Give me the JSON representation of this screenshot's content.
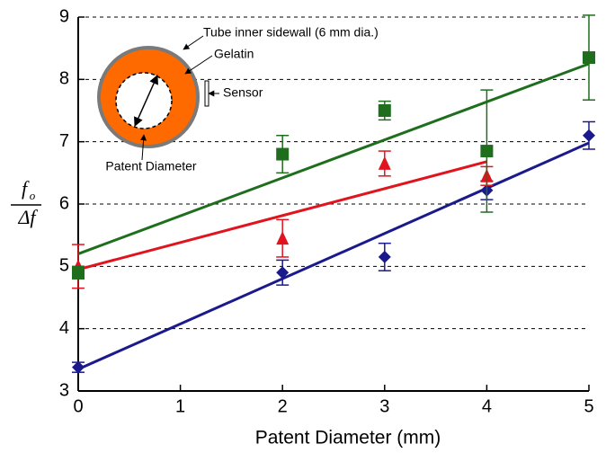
{
  "chart_data": {
    "type": "scatter",
    "x_label": "Patent Diameter (mm)",
    "y_label": {
      "numerator": "f",
      "numerator_sub": "o",
      "denominator": "Δf"
    },
    "xlim": [
      0,
      5
    ],
    "xticks": [
      0,
      1,
      2,
      3,
      4,
      5
    ],
    "ylim": [
      3,
      9
    ],
    "yticks": [
      3,
      4,
      5,
      6,
      7,
      8,
      9
    ],
    "grid": true,
    "series": [
      {
        "color": "#1a1a8c",
        "marker": "diamond",
        "x": [
          0,
          2,
          3,
          4,
          5
        ],
        "values": [
          3.38,
          4.9,
          5.15,
          6.22,
          7.1
        ],
        "errors": [
          0.08,
          0.2,
          0.22,
          0.15,
          0.22
        ],
        "trendline": {
          "x": [
            0,
            5
          ],
          "y": [
            3.35,
            6.98
          ]
        }
      },
      {
        "color": "#e0141e",
        "marker": "triangle",
        "x": [
          0,
          2,
          3,
          4
        ],
        "values": [
          5.0,
          5.45,
          6.65,
          6.45
        ],
        "errors": [
          0.35,
          0.3,
          0.2,
          0.15
        ],
        "trendline": {
          "x": [
            0,
            4
          ],
          "y": [
            4.95,
            6.68
          ]
        }
      },
      {
        "color": "#1e6e1e",
        "marker": "square",
        "x": [
          0,
          2,
          3,
          4,
          5
        ],
        "values": [
          4.9,
          6.8,
          7.5,
          6.85,
          8.35
        ],
        "errors": [
          0.1,
          0.3,
          0.15,
          0.98,
          0.68
        ],
        "trendline": {
          "x": [
            0,
            5
          ],
          "y": [
            5.2,
            8.25
          ]
        }
      }
    ],
    "annotations": [
      "Tube inner sidewall (6 mm dia.)",
      "Gelatin",
      "Sensor",
      "Patent Diameter"
    ]
  }
}
